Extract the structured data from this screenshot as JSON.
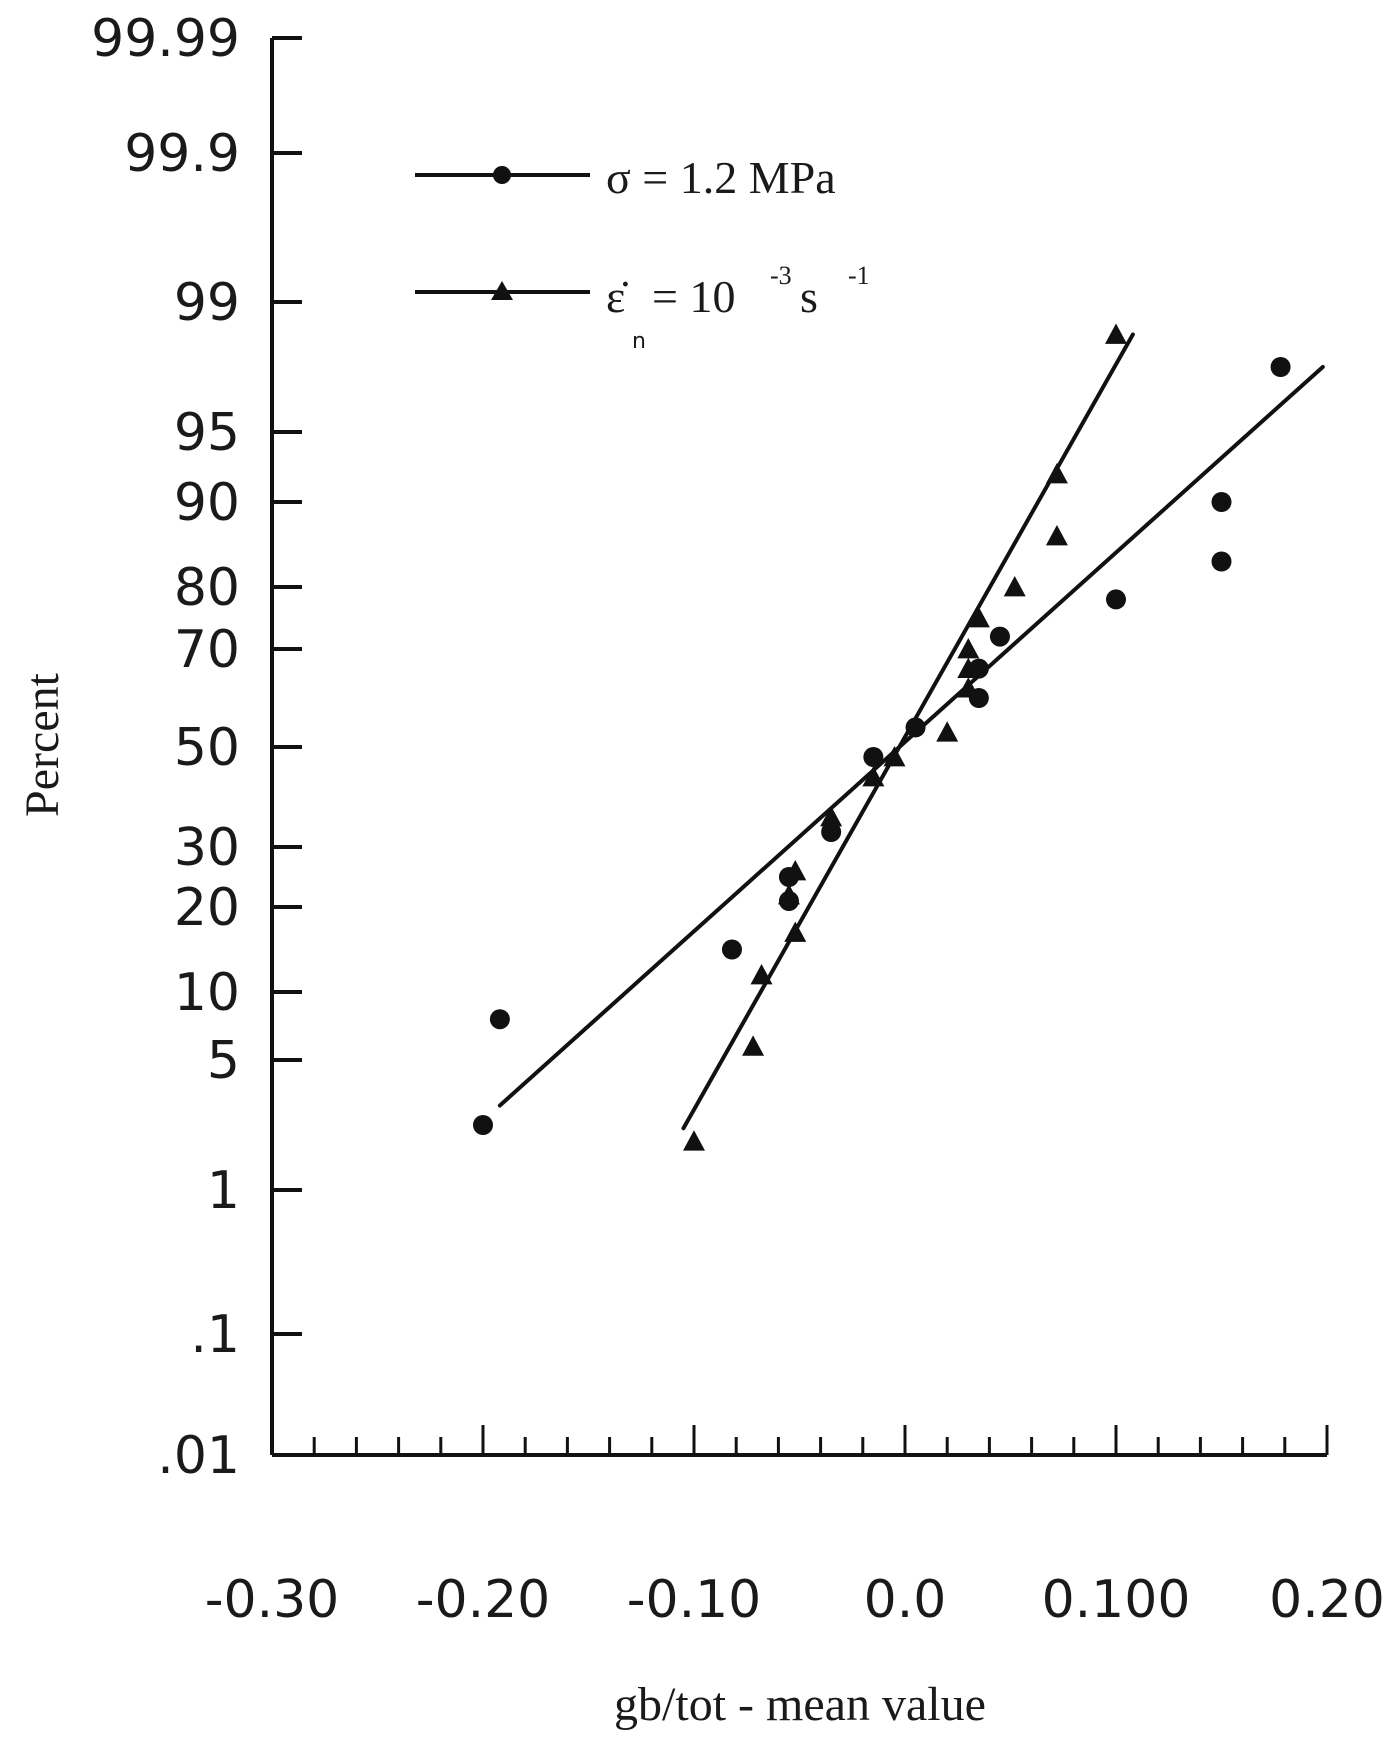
{
  "chart_data": {
    "type": "scatter",
    "xlabel": "gb/tot - mean value",
    "ylabel": "Percent",
    "x_axis": {
      "range": [
        -0.3,
        0.2
      ],
      "tick_labels": [
        "-0.30",
        "-0.20",
        "-0.10",
        "0.0",
        "0.100",
        "0.20"
      ],
      "tick_values": [
        -0.3,
        -0.2,
        -0.1,
        0.0,
        0.1,
        0.2
      ],
      "minor_step": 0.02
    },
    "y_axis": {
      "scale": "normal-probability",
      "range": [
        0.01,
        99.99
      ],
      "tick_labels": [
        "99.99",
        "99.9",
        "99",
        "95",
        "90",
        "80",
        "70",
        "50",
        "30",
        "20",
        "10",
        "5",
        "1",
        ".1",
        ".01"
      ],
      "tick_values": [
        99.99,
        99.9,
        99,
        95,
        90,
        80,
        70,
        50,
        30,
        20,
        10,
        5,
        1,
        0.1,
        0.01
      ]
    },
    "legend": {
      "placement": "top-left",
      "entries": [
        {
          "symbol": "circle",
          "prefix": "σ = 1.2 MPa",
          "sup": "",
          "sup2": "",
          "suffix": "",
          "sub": ""
        },
        {
          "symbol": "triangle",
          "prefix": "ε̇",
          "sub": "n",
          "mid": " = 10",
          "sup": "-3",
          "suffix": " s",
          "sup2": "-1"
        }
      ]
    },
    "series": [
      {
        "name": "σ = 1.2 MPa",
        "marker": "circle",
        "points": [
          {
            "x": -0.2,
            "y": 3
          },
          {
            "x": -0.192,
            "y": 8
          },
          {
            "x": -0.082,
            "y": 15
          },
          {
            "x": -0.055,
            "y": 21
          },
          {
            "x": -0.055,
            "y": 25
          },
          {
            "x": -0.035,
            "y": 33
          },
          {
            "x": -0.015,
            "y": 48
          },
          {
            "x": 0.005,
            "y": 54
          },
          {
            "x": 0.035,
            "y": 60
          },
          {
            "x": 0.035,
            "y": 66
          },
          {
            "x": 0.045,
            "y": 72
          },
          {
            "x": 0.1,
            "y": 78
          },
          {
            "x": 0.15,
            "y": 83
          },
          {
            "x": 0.15,
            "y": 90
          },
          {
            "x": 0.178,
            "y": 97
          }
        ],
        "fit_line": [
          {
            "x": -0.192,
            "y": 3.6
          },
          {
            "x": 0.198,
            "y": 97.0
          }
        ]
      },
      {
        "name": "ε̇n = 10-3 s-1",
        "marker": "triangle",
        "points": [
          {
            "x": -0.1,
            "y": 2.5
          },
          {
            "x": -0.072,
            "y": 6
          },
          {
            "x": -0.068,
            "y": 12
          },
          {
            "x": -0.052,
            "y": 17
          },
          {
            "x": -0.055,
            "y": 22
          },
          {
            "x": -0.052,
            "y": 26
          },
          {
            "x": -0.035,
            "y": 36
          },
          {
            "x": -0.015,
            "y": 44
          },
          {
            "x": -0.005,
            "y": 48
          },
          {
            "x": 0.02,
            "y": 53
          },
          {
            "x": 0.03,
            "y": 62
          },
          {
            "x": 0.03,
            "y": 66
          },
          {
            "x": 0.03,
            "y": 70
          },
          {
            "x": 0.035,
            "y": 75
          },
          {
            "x": 0.052,
            "y": 80
          },
          {
            "x": 0.072,
            "y": 86
          },
          {
            "x": 0.072,
            "y": 92
          },
          {
            "x": 0.1,
            "y": 98
          }
        ],
        "fit_line": [
          {
            "x": -0.105,
            "y": 2.9
          },
          {
            "x": 0.108,
            "y": 98.0
          }
        ]
      }
    ]
  }
}
